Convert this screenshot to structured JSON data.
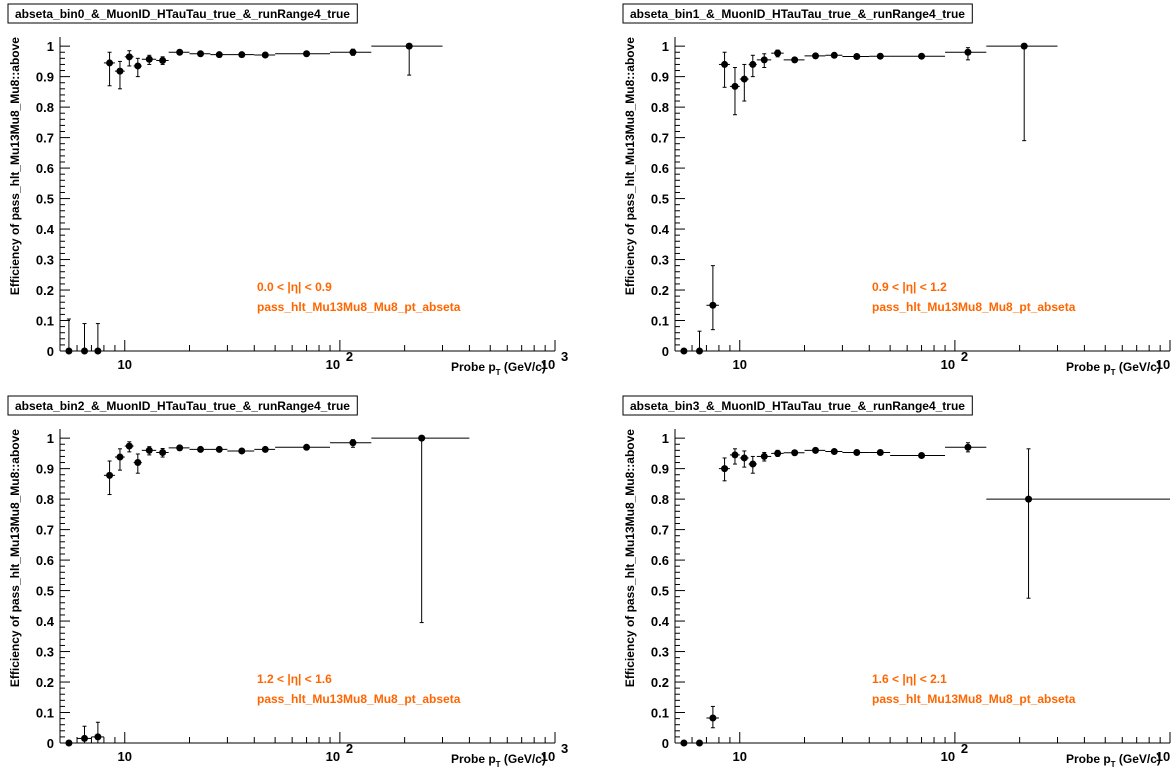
{
  "chart_data": [
    {
      "type": "scatter",
      "title": "abseta_bin0_&_MuonID_HTauTau_true_&_runRange4_true",
      "ylabel": "Efficiency of pass_hlt_Mu13Mu8_Mu8::above",
      "xlabel": "Probe p_T (GeV/c)",
      "x_scale": "log",
      "xlim": [
        5,
        1000
      ],
      "ylim": [
        0,
        1.03
      ],
      "annotations": [
        "0.0 < |η| < 0.9",
        "pass_hlt_Mu13Mu8_Mu8_pt_abseta"
      ],
      "points": [
        {
          "x": 5.5,
          "y": 0.0,
          "xlo": 5.0,
          "xhi": 6.0,
          "ylo": 0.0,
          "yhi": 0.105
        },
        {
          "x": 6.5,
          "y": 0.0,
          "xlo": 6.0,
          "xhi": 7.0,
          "ylo": 0.0,
          "yhi": 0.09
        },
        {
          "x": 7.5,
          "y": 0.0,
          "xlo": 7.0,
          "xhi": 8.0,
          "ylo": 0.0,
          "yhi": 0.09
        },
        {
          "x": 8.5,
          "y": 0.945,
          "xlo": 8.0,
          "xhi": 9.0,
          "ylo": 0.87,
          "yhi": 0.98
        },
        {
          "x": 9.5,
          "y": 0.918,
          "xlo": 9.0,
          "xhi": 10.0,
          "ylo": 0.86,
          "yhi": 0.95
        },
        {
          "x": 10.5,
          "y": 0.965,
          "xlo": 10.0,
          "xhi": 11.0,
          "ylo": 0.935,
          "yhi": 0.985
        },
        {
          "x": 11.5,
          "y": 0.935,
          "xlo": 11.0,
          "xhi": 12.0,
          "ylo": 0.9,
          "yhi": 0.96
        },
        {
          "x": 13.0,
          "y": 0.957,
          "xlo": 12.0,
          "xhi": 14.0,
          "ylo": 0.94,
          "yhi": 0.97
        },
        {
          "x": 15.0,
          "y": 0.953,
          "xlo": 14.0,
          "xhi": 16.0,
          "ylo": 0.94,
          "yhi": 0.965
        },
        {
          "x": 18.0,
          "y": 0.98,
          "xlo": 16.0,
          "xhi": 20.0,
          "ylo": 0.975,
          "yhi": 0.985
        },
        {
          "x": 22.5,
          "y": 0.975,
          "xlo": 20.0,
          "xhi": 25.0,
          "ylo": 0.97,
          "yhi": 0.98
        },
        {
          "x": 27.5,
          "y": 0.972,
          "xlo": 25.0,
          "xhi": 30.0,
          "ylo": 0.968,
          "yhi": 0.976
        },
        {
          "x": 35.0,
          "y": 0.972,
          "xlo": 30.0,
          "xhi": 40.0,
          "ylo": 0.969,
          "yhi": 0.975
        },
        {
          "x": 45.0,
          "y": 0.971,
          "xlo": 40.0,
          "xhi": 50.0,
          "ylo": 0.968,
          "yhi": 0.974
        },
        {
          "x": 70.0,
          "y": 0.975,
          "xlo": 50.0,
          "xhi": 90.0,
          "ylo": 0.972,
          "yhi": 0.978
        },
        {
          "x": 115.0,
          "y": 0.98,
          "xlo": 90.0,
          "xhi": 140.0,
          "ylo": 0.97,
          "yhi": 0.99
        },
        {
          "x": 210.0,
          "y": 1.0,
          "xlo": 140.0,
          "xhi": 300.0,
          "ylo": 0.905,
          "yhi": 1.0
        }
      ]
    },
    {
      "type": "scatter",
      "title": "abseta_bin1_&_MuonID_HTauTau_true_&_runRange4_true",
      "ylabel": "Efficiency of pass_hlt_Mu13Mu8_Mu8::above",
      "xlabel": "Probe p_T (GeV/c)",
      "x_scale": "log",
      "xlim": [
        5,
        1000
      ],
      "ylim": [
        0,
        1.03
      ],
      "annotations": [
        "0.9 < |η| < 1.2",
        "pass_hlt_Mu13Mu8_Mu8_pt_abseta"
      ],
      "points": [
        {
          "x": 5.5,
          "y": 0.0,
          "xlo": 5.0,
          "xhi": 6.0,
          "ylo": 0.0,
          "yhi": 0.0
        },
        {
          "x": 6.5,
          "y": 0.0,
          "xlo": 6.0,
          "xhi": 7.0,
          "ylo": 0.0,
          "yhi": 0.065
        },
        {
          "x": 7.5,
          "y": 0.15,
          "xlo": 7.0,
          "xhi": 8.0,
          "ylo": 0.07,
          "yhi": 0.28
        },
        {
          "x": 8.5,
          "y": 0.94,
          "xlo": 8.0,
          "xhi": 9.0,
          "ylo": 0.865,
          "yhi": 0.98
        },
        {
          "x": 9.5,
          "y": 0.868,
          "xlo": 9.0,
          "xhi": 10.0,
          "ylo": 0.775,
          "yhi": 0.93
        },
        {
          "x": 10.5,
          "y": 0.892,
          "xlo": 10.0,
          "xhi": 11.0,
          "ylo": 0.82,
          "yhi": 0.94
        },
        {
          "x": 11.5,
          "y": 0.94,
          "xlo": 11.0,
          "xhi": 12.0,
          "ylo": 0.9,
          "yhi": 0.97
        },
        {
          "x": 13.0,
          "y": 0.955,
          "xlo": 12.0,
          "xhi": 14.0,
          "ylo": 0.93,
          "yhi": 0.975
        },
        {
          "x": 15.0,
          "y": 0.977,
          "xlo": 14.0,
          "xhi": 16.0,
          "ylo": 0.965,
          "yhi": 0.987
        },
        {
          "x": 18.0,
          "y": 0.955,
          "xlo": 16.0,
          "xhi": 20.0,
          "ylo": 0.948,
          "yhi": 0.962
        },
        {
          "x": 22.5,
          "y": 0.968,
          "xlo": 20.0,
          "xhi": 25.0,
          "ylo": 0.963,
          "yhi": 0.973
        },
        {
          "x": 27.5,
          "y": 0.97,
          "xlo": 25.0,
          "xhi": 30.0,
          "ylo": 0.966,
          "yhi": 0.974
        },
        {
          "x": 35.0,
          "y": 0.966,
          "xlo": 30.0,
          "xhi": 40.0,
          "ylo": 0.963,
          "yhi": 0.969
        },
        {
          "x": 45.0,
          "y": 0.967,
          "xlo": 40.0,
          "xhi": 50.0,
          "ylo": 0.964,
          "yhi": 0.97
        },
        {
          "x": 70.0,
          "y": 0.967,
          "xlo": 50.0,
          "xhi": 90.0,
          "ylo": 0.963,
          "yhi": 0.971
        },
        {
          "x": 115.0,
          "y": 0.98,
          "xlo": 90.0,
          "xhi": 140.0,
          "ylo": 0.955,
          "yhi": 0.995
        },
        {
          "x": 210.0,
          "y": 1.0,
          "xlo": 140.0,
          "xhi": 300.0,
          "ylo": 0.69,
          "yhi": 1.0
        }
      ]
    },
    {
      "type": "scatter",
      "title": "abseta_bin2_&_MuonID_HTauTau_true_&_runRange4_true",
      "ylabel": "Efficiency of pass_hlt_Mu13Mu8_Mu8::above",
      "xlabel": "Probe p_T (GeV/c)",
      "x_scale": "log",
      "xlim": [
        5,
        1000
      ],
      "ylim": [
        0,
        1.03
      ],
      "annotations": [
        "1.2 < |η| < 1.6",
        "pass_hlt_Mu13Mu8_Mu8_pt_abseta"
      ],
      "points": [
        {
          "x": 5.5,
          "y": 0.0,
          "xlo": 5.0,
          "xhi": 6.0,
          "ylo": 0.0,
          "yhi": 0.0
        },
        {
          "x": 6.5,
          "y": 0.015,
          "xlo": 6.0,
          "xhi": 7.0,
          "ylo": 0.0,
          "yhi": 0.055
        },
        {
          "x": 7.5,
          "y": 0.02,
          "xlo": 7.0,
          "xhi": 8.0,
          "ylo": 0.0,
          "yhi": 0.068
        },
        {
          "x": 8.5,
          "y": 0.878,
          "xlo": 8.0,
          "xhi": 9.0,
          "ylo": 0.815,
          "yhi": 0.925
        },
        {
          "x": 9.5,
          "y": 0.938,
          "xlo": 9.0,
          "xhi": 10.0,
          "ylo": 0.895,
          "yhi": 0.965
        },
        {
          "x": 10.5,
          "y": 0.974,
          "xlo": 10.0,
          "xhi": 11.0,
          "ylo": 0.955,
          "yhi": 0.988
        },
        {
          "x": 11.5,
          "y": 0.92,
          "xlo": 11.0,
          "xhi": 12.0,
          "ylo": 0.885,
          "yhi": 0.948
        },
        {
          "x": 13.0,
          "y": 0.96,
          "xlo": 12.0,
          "xhi": 14.0,
          "ylo": 0.945,
          "yhi": 0.972
        },
        {
          "x": 15.0,
          "y": 0.953,
          "xlo": 14.0,
          "xhi": 16.0,
          "ylo": 0.938,
          "yhi": 0.966
        },
        {
          "x": 18.0,
          "y": 0.968,
          "xlo": 16.0,
          "xhi": 20.0,
          "ylo": 0.96,
          "yhi": 0.975
        },
        {
          "x": 22.5,
          "y": 0.963,
          "xlo": 20.0,
          "xhi": 25.0,
          "ylo": 0.957,
          "yhi": 0.969
        },
        {
          "x": 27.5,
          "y": 0.963,
          "xlo": 25.0,
          "xhi": 30.0,
          "ylo": 0.958,
          "yhi": 0.968
        },
        {
          "x": 35.0,
          "y": 0.958,
          "xlo": 30.0,
          "xhi": 40.0,
          "ylo": 0.954,
          "yhi": 0.962
        },
        {
          "x": 45.0,
          "y": 0.963,
          "xlo": 40.0,
          "xhi": 50.0,
          "ylo": 0.959,
          "yhi": 0.967
        },
        {
          "x": 70.0,
          "y": 0.97,
          "xlo": 50.0,
          "xhi": 90.0,
          "ylo": 0.965,
          "yhi": 0.975
        },
        {
          "x": 115.0,
          "y": 0.985,
          "xlo": 90.0,
          "xhi": 140.0,
          "ylo": 0.97,
          "yhi": 0.995
        },
        {
          "x": 240.0,
          "y": 1.0,
          "xlo": 140.0,
          "xhi": 400.0,
          "ylo": 0.395,
          "yhi": 1.0
        }
      ]
    },
    {
      "type": "scatter",
      "title": "abseta_bin3_&_MuonID_HTauTau_true_&_runRange4_true",
      "ylabel": "Efficiency of pass_hlt_Mu13Mu8_Mu8::above",
      "xlabel": "Probe p_T (GeV/c)",
      "x_scale": "log",
      "xlim": [
        5,
        1000
      ],
      "ylim": [
        0,
        1.03
      ],
      "annotations": [
        "1.6 < |η| < 2.1",
        "pass_hlt_Mu13Mu8_Mu8_pt_abseta"
      ],
      "points": [
        {
          "x": 5.5,
          "y": 0.0,
          "xlo": 5.0,
          "xhi": 6.0,
          "ylo": 0.0,
          "yhi": 0.0
        },
        {
          "x": 6.5,
          "y": 0.0,
          "xlo": 6.0,
          "xhi": 7.0,
          "ylo": 0.0,
          "yhi": 0.0
        },
        {
          "x": 7.5,
          "y": 0.082,
          "xlo": 7.0,
          "xhi": 8.0,
          "ylo": 0.05,
          "yhi": 0.12
        },
        {
          "x": 8.5,
          "y": 0.9,
          "xlo": 8.0,
          "xhi": 9.0,
          "ylo": 0.86,
          "yhi": 0.935
        },
        {
          "x": 9.5,
          "y": 0.945,
          "xlo": 9.0,
          "xhi": 10.0,
          "ylo": 0.915,
          "yhi": 0.965
        },
        {
          "x": 10.5,
          "y": 0.935,
          "xlo": 10.0,
          "xhi": 11.0,
          "ylo": 0.905,
          "yhi": 0.958
        },
        {
          "x": 11.5,
          "y": 0.915,
          "xlo": 11.0,
          "xhi": 12.0,
          "ylo": 0.885,
          "yhi": 0.94
        },
        {
          "x": 13.0,
          "y": 0.94,
          "xlo": 12.0,
          "xhi": 14.0,
          "ylo": 0.925,
          "yhi": 0.953
        },
        {
          "x": 15.0,
          "y": 0.95,
          "xlo": 14.0,
          "xhi": 16.0,
          "ylo": 0.94,
          "yhi": 0.96
        },
        {
          "x": 18.0,
          "y": 0.952,
          "xlo": 16.0,
          "xhi": 20.0,
          "ylo": 0.946,
          "yhi": 0.958
        },
        {
          "x": 22.5,
          "y": 0.96,
          "xlo": 20.0,
          "xhi": 25.0,
          "ylo": 0.955,
          "yhi": 0.965
        },
        {
          "x": 27.5,
          "y": 0.956,
          "xlo": 25.0,
          "xhi": 30.0,
          "ylo": 0.951,
          "yhi": 0.961
        },
        {
          "x": 35.0,
          "y": 0.953,
          "xlo": 30.0,
          "xhi": 40.0,
          "ylo": 0.949,
          "yhi": 0.957
        },
        {
          "x": 45.0,
          "y": 0.953,
          "xlo": 40.0,
          "xhi": 50.0,
          "ylo": 0.949,
          "yhi": 0.957
        },
        {
          "x": 70.0,
          "y": 0.943,
          "xlo": 50.0,
          "xhi": 90.0,
          "ylo": 0.938,
          "yhi": 0.948
        },
        {
          "x": 115.0,
          "y": 0.97,
          "xlo": 90.0,
          "xhi": 140.0,
          "ylo": 0.955,
          "yhi": 0.985
        },
        {
          "x": 220.0,
          "y": 0.8,
          "xlo": 140.0,
          "xhi": 1000.0,
          "ylo": 0.475,
          "yhi": 0.965
        }
      ]
    }
  ]
}
